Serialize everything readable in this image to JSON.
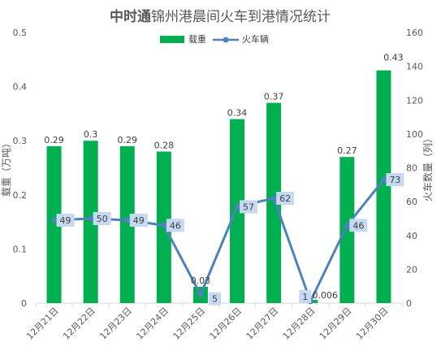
{
  "chart_data": {
    "type": "bar",
    "title": {
      "bold": "中时通",
      "rest": "锦州港晨间火车到港情况统计"
    },
    "categories": [
      "12月21日",
      "12月22日",
      "12月23日",
      "12月24日",
      "12月25日",
      "12月26日",
      "12月27日",
      "12月28日",
      "12月29日",
      "12月30日"
    ],
    "series": [
      {
        "name": "载重",
        "type": "bar",
        "axis": "left",
        "color": "#00b050",
        "values": [
          0.29,
          0.3,
          0.29,
          0.28,
          0.03,
          0.34,
          0.37,
          0.006,
          0.27,
          0.43
        ],
        "labels": [
          "0.29",
          "0.3",
          "0.29",
          "0.28",
          "0.03",
          "0.34",
          "0.37",
          "0.006",
          "0.27",
          "0.43"
        ]
      },
      {
        "name": "火车辆",
        "type": "line",
        "axis": "right",
        "color": "#4f81bd",
        "label_bg": "#c5d9f1",
        "values": [
          49,
          50,
          49,
          46,
          5,
          57,
          62,
          1,
          46,
          73
        ],
        "labels": [
          "49",
          "50",
          "49",
          "46",
          "5",
          "57",
          "62",
          "1",
          "46",
          "73"
        ]
      }
    ],
    "y_left": {
      "label": "载重（万吨）",
      "range": [
        0,
        0.5
      ],
      "ticks": [
        "0",
        "0.1",
        "0.2",
        "0.3",
        "0.4",
        "0.5"
      ]
    },
    "y_right": {
      "label": "火车数量（列）",
      "range": [
        0,
        160
      ],
      "ticks": [
        "0",
        "20",
        "40",
        "60",
        "80",
        "100",
        "120",
        "140",
        "160"
      ]
    },
    "grid": false,
    "legend": "top-center"
  }
}
